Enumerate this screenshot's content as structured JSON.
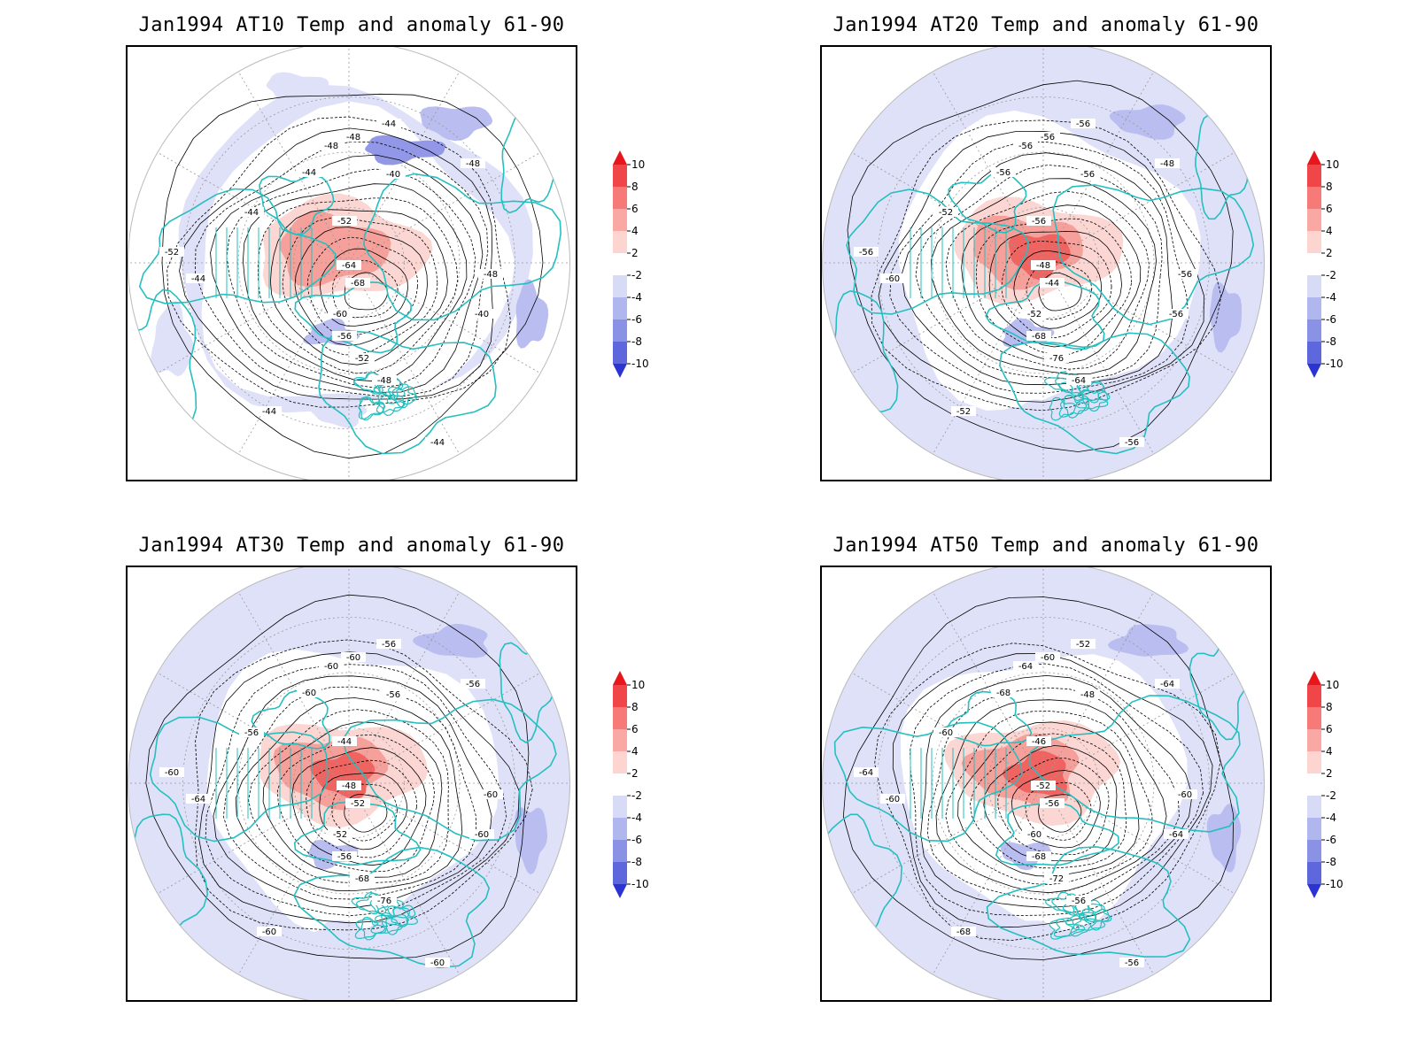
{
  "panels": [
    {
      "title": "Jan1994  AT10  Temp  and  anomaly  61-90",
      "contour_labels": [
        "-44",
        "-48",
        "-48",
        "-44",
        "-40",
        "-52",
        "-64",
        "-68",
        "-60",
        "-56",
        "-52",
        "-48",
        "-44",
        "-40",
        "-44",
        "-48",
        "-44",
        "-44",
        "-48",
        "-52"
      ]
    },
    {
      "title": "Jan1994  AT20  Temp  and  anomaly  61-90",
      "contour_labels": [
        "-56",
        "-56",
        "-56",
        "-56",
        "-56",
        "-56",
        "-48",
        "-44",
        "-52",
        "-68",
        "-76",
        "-64",
        "-60",
        "-56",
        "-52",
        "-48",
        "-52",
        "-56",
        "-56",
        "-56"
      ]
    },
    {
      "title": "Jan1994  AT30  Temp  and  anomaly  61-90",
      "contour_labels": [
        "-60",
        "-60",
        "-60",
        "-56",
        "-56",
        "-44",
        "-48",
        "-52",
        "-52",
        "-56",
        "-68",
        "-76",
        "-64",
        "-60",
        "-56",
        "-56",
        "-60",
        "-60",
        "-60",
        "-60"
      ]
    },
    {
      "title": "Jan1994  AT50  Temp  and  anomaly  61-90",
      "contour_labels": [
        "-68",
        "-64",
        "-60",
        "-52",
        "-48",
        "-46",
        "-52",
        "-56",
        "-60",
        "-68",
        "-72",
        "-56",
        "-60",
        "-64",
        "-60",
        "-64",
        "-68",
        "-56",
        "-60",
        "-64"
      ]
    }
  ],
  "colorbar": {
    "labels": [
      "10",
      "8",
      "6",
      "4",
      "2",
      "-2",
      "-4",
      "-6",
      "-8",
      "-10"
    ],
    "colors": [
      "#e8151b",
      "#f0464a",
      "#f57a78",
      "#f9a8a4",
      "#fcd4d0",
      "#ffffff",
      "#d8dbf6",
      "#b0b6ee",
      "#8a92e6",
      "#5e67dc",
      "#2b34d2"
    ]
  },
  "map_colors": {
    "coast": "#26bfbf",
    "contour": "#000000",
    "grid": "#999999",
    "anom_neg_light": "#dfe1f8",
    "anom_neg_mid": "#b9bdf0",
    "anom_neg_dark": "#9298e7",
    "anom_pos_light": "#fbd6d2",
    "anom_pos_mid": "#f6a09b",
    "anom_pos_dark": "#ef6461"
  }
}
